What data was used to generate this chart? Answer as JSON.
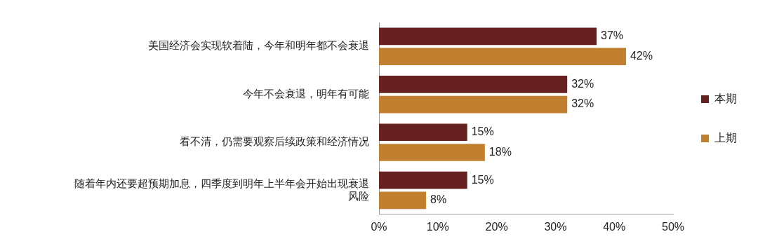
{
  "chart_data": {
    "type": "bar",
    "orientation": "horizontal",
    "categories": [
      "美国经济会实现软着陆，今年和明年都不会衰退",
      "今年不会衰退，明年有可能",
      "看不清，仍需要观察后续政策和经济情况",
      "随着年内还要超预期加息，四季度到明年上半年会开始出现衰退风险"
    ],
    "series": [
      {
        "name": "本期",
        "color": "#66201f",
        "values": [
          37,
          32,
          15,
          15
        ],
        "value_labels": [
          "37%",
          "32%",
          "15%",
          "15%"
        ]
      },
      {
        "name": "上期",
        "color": "#c08030",
        "values": [
          42,
          32,
          18,
          8
        ],
        "value_labels": [
          "42%",
          "32%",
          "18%",
          "8%"
        ]
      }
    ],
    "xlim": [
      0,
      50
    ],
    "xticks": [
      {
        "value": 0,
        "label": "0%"
      },
      {
        "value": 10,
        "label": "10%"
      },
      {
        "value": 20,
        "label": "20%"
      },
      {
        "value": 30,
        "label": "30%"
      },
      {
        "value": 40,
        "label": "40%"
      },
      {
        "value": 50,
        "label": "50%"
      }
    ],
    "grid": false,
    "legend": "right"
  }
}
